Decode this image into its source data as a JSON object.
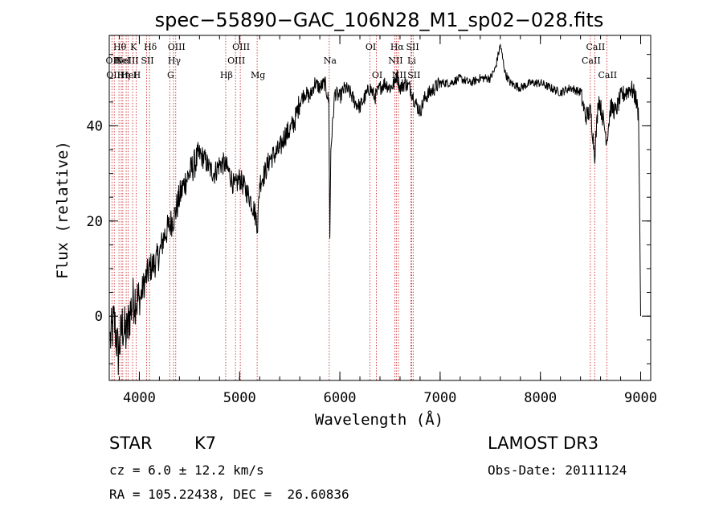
{
  "chart_data": {
    "type": "line",
    "title": "spec−55890−GAC_106N28_M1_sp02−028.fits",
    "xlabel": "Wavelength (Å)",
    "ylabel": "Flux (relative)",
    "xlim": [
      3700,
      9100
    ],
    "ylim": [
      -13.5,
      59
    ],
    "xticks": [
      4000,
      5000,
      6000,
      7000,
      8000,
      9000
    ],
    "yticks": [
      0,
      20,
      40
    ],
    "x_minor_step": 200,
    "y_minor_step": 5,
    "line_color": "#000000",
    "marker_color": "#cc3333",
    "series": [
      {
        "name": "flux",
        "x": [
          3710,
          3750,
          3790,
          3830,
          3870,
          3910,
          3950,
          4000,
          4050,
          4100,
          4150,
          4200,
          4250,
          4300,
          4350,
          4400,
          4450,
          4500,
          4550,
          4600,
          4650,
          4700,
          4750,
          4800,
          4850,
          4900,
          4950,
          5000,
          5050,
          5100,
          5150,
          5180,
          5200,
          5250,
          5300,
          5350,
          5400,
          5450,
          5500,
          5550,
          5600,
          5650,
          5700,
          5750,
          5800,
          5850,
          5890,
          5900,
          5910,
          5950,
          6000,
          6050,
          6100,
          6150,
          6200,
          6250,
          6300,
          6350,
          6400,
          6450,
          6500,
          6550,
          6563,
          6600,
          6650,
          6700,
          6750,
          6800,
          6850,
          6900,
          6950,
          7000,
          7100,
          7200,
          7300,
          7400,
          7500,
          7550,
          7600,
          7650,
          7700,
          7800,
          7900,
          8000,
          8100,
          8200,
          8300,
          8400,
          8450,
          8500,
          8542,
          8580,
          8620,
          8662,
          8700,
          8750,
          8800,
          8850,
          8900,
          8950,
          8980,
          9000
        ],
        "y": [
          -5,
          -1,
          -8,
          -2,
          -4,
          1,
          4,
          3,
          7,
          10,
          11,
          13,
          17,
          19,
          21,
          25,
          28,
          30,
          32,
          34,
          33,
          31,
          30,
          32,
          32,
          30,
          27,
          29,
          27,
          25,
          22,
          19,
          28,
          30,
          33,
          34,
          35,
          38,
          39,
          41,
          45,
          47,
          46,
          49,
          48,
          49,
          45,
          16,
          35,
          47,
          46,
          48,
          47,
          45,
          44,
          46,
          48,
          46,
          48,
          49,
          48,
          49,
          51,
          48,
          49,
          48,
          45,
          43,
          46,
          47,
          48,
          49,
          49,
          50,
          49,
          50,
          50,
          52,
          57,
          51,
          49,
          48,
          49,
          49,
          48,
          47,
          48,
          47,
          42,
          43,
          34,
          46,
          42,
          37,
          44,
          43,
          46,
          47,
          48,
          46,
          42,
          0
        ]
      }
    ],
    "spectral_lines": [
      {
        "wavelength": 3727,
        "row": 1,
        "label": "OII"
      },
      {
        "wavelength": 3750,
        "row": 2,
        "label": "OIII"
      },
      {
        "wavelength": 3797,
        "row": 0,
        "label": "Hθ"
      },
      {
        "wavelength": 3820,
        "row": 1,
        "label": "HeI"
      },
      {
        "wavelength": 3835,
        "row": 2,
        "label": "Hη"
      },
      {
        "wavelength": 3869,
        "row": 1,
        "label": "NeIII"
      },
      {
        "wavelength": 3889,
        "row": 2,
        "label": "HeI"
      },
      {
        "wavelength": 3934,
        "row": 0,
        "label": "K"
      },
      {
        "wavelength": 3968,
        "row": 2,
        "label": "H"
      },
      {
        "wavelength": 4072,
        "row": 1,
        "label": "SII"
      },
      {
        "wavelength": 4102,
        "row": 0,
        "label": "Hδ"
      },
      {
        "wavelength": 4304,
        "row": 2,
        "label": "G"
      },
      {
        "wavelength": 4341,
        "row": 1,
        "label": "Hγ"
      },
      {
        "wavelength": 4363,
        "row": 0,
        "label": "OIII"
      },
      {
        "wavelength": 4861,
        "row": 2,
        "label": "Hβ"
      },
      {
        "wavelength": 4959,
        "row": 1,
        "label": "OIII"
      },
      {
        "wavelength": 5007,
        "row": 0,
        "label": "OIII"
      },
      {
        "wavelength": 5175,
        "row": 2,
        "label": "Mg"
      },
      {
        "wavelength": 5894,
        "row": 1,
        "label": "Na"
      },
      {
        "wavelength": 6300,
        "row": 0,
        "label": "OI"
      },
      {
        "wavelength": 6364,
        "row": 2,
        "label": "OI"
      },
      {
        "wavelength": 6548,
        "row": 1,
        "label": "NII"
      },
      {
        "wavelength": 6563,
        "row": 0,
        "label": "Hα"
      },
      {
        "wavelength": 6584,
        "row": 2,
        "label": "NII"
      },
      {
        "wavelength": 6708,
        "row": 1,
        "label": "Li"
      },
      {
        "wavelength": 6717,
        "row": 0,
        "label": "SII"
      },
      {
        "wavelength": 6731,
        "row": 2,
        "label": "SII"
      },
      {
        "wavelength": 8498,
        "row": 1,
        "label": "CaII"
      },
      {
        "wavelength": 8542,
        "row": 0,
        "label": "CaII"
      },
      {
        "wavelength": 8662,
        "row": 2,
        "label": "CaII"
      }
    ]
  },
  "info": {
    "object_class": "STAR",
    "subclass": "K7",
    "survey": "LAMOST DR3",
    "redshift": "cz = 6.0 ± 12.2 km/s",
    "obs_date": "Obs-Date: 20111124",
    "coords": "RA = 105.22438, DEC =  26.60836"
  }
}
